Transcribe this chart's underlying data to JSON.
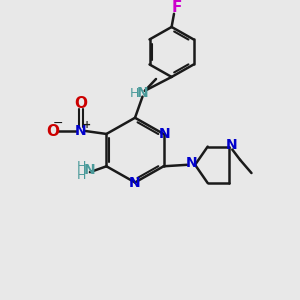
{
  "background_color": "#e8e8e8",
  "bond_color": "#1a1a1a",
  "nitrogen_color": "#0000cc",
  "oxygen_color": "#cc0000",
  "fluorine_color": "#cc00cc",
  "teal_color": "#4a9a9a",
  "figsize": [
    3.0,
    3.0
  ],
  "dpi": 100,
  "xlim": [
    0,
    10
  ],
  "ylim": [
    0,
    10
  ]
}
